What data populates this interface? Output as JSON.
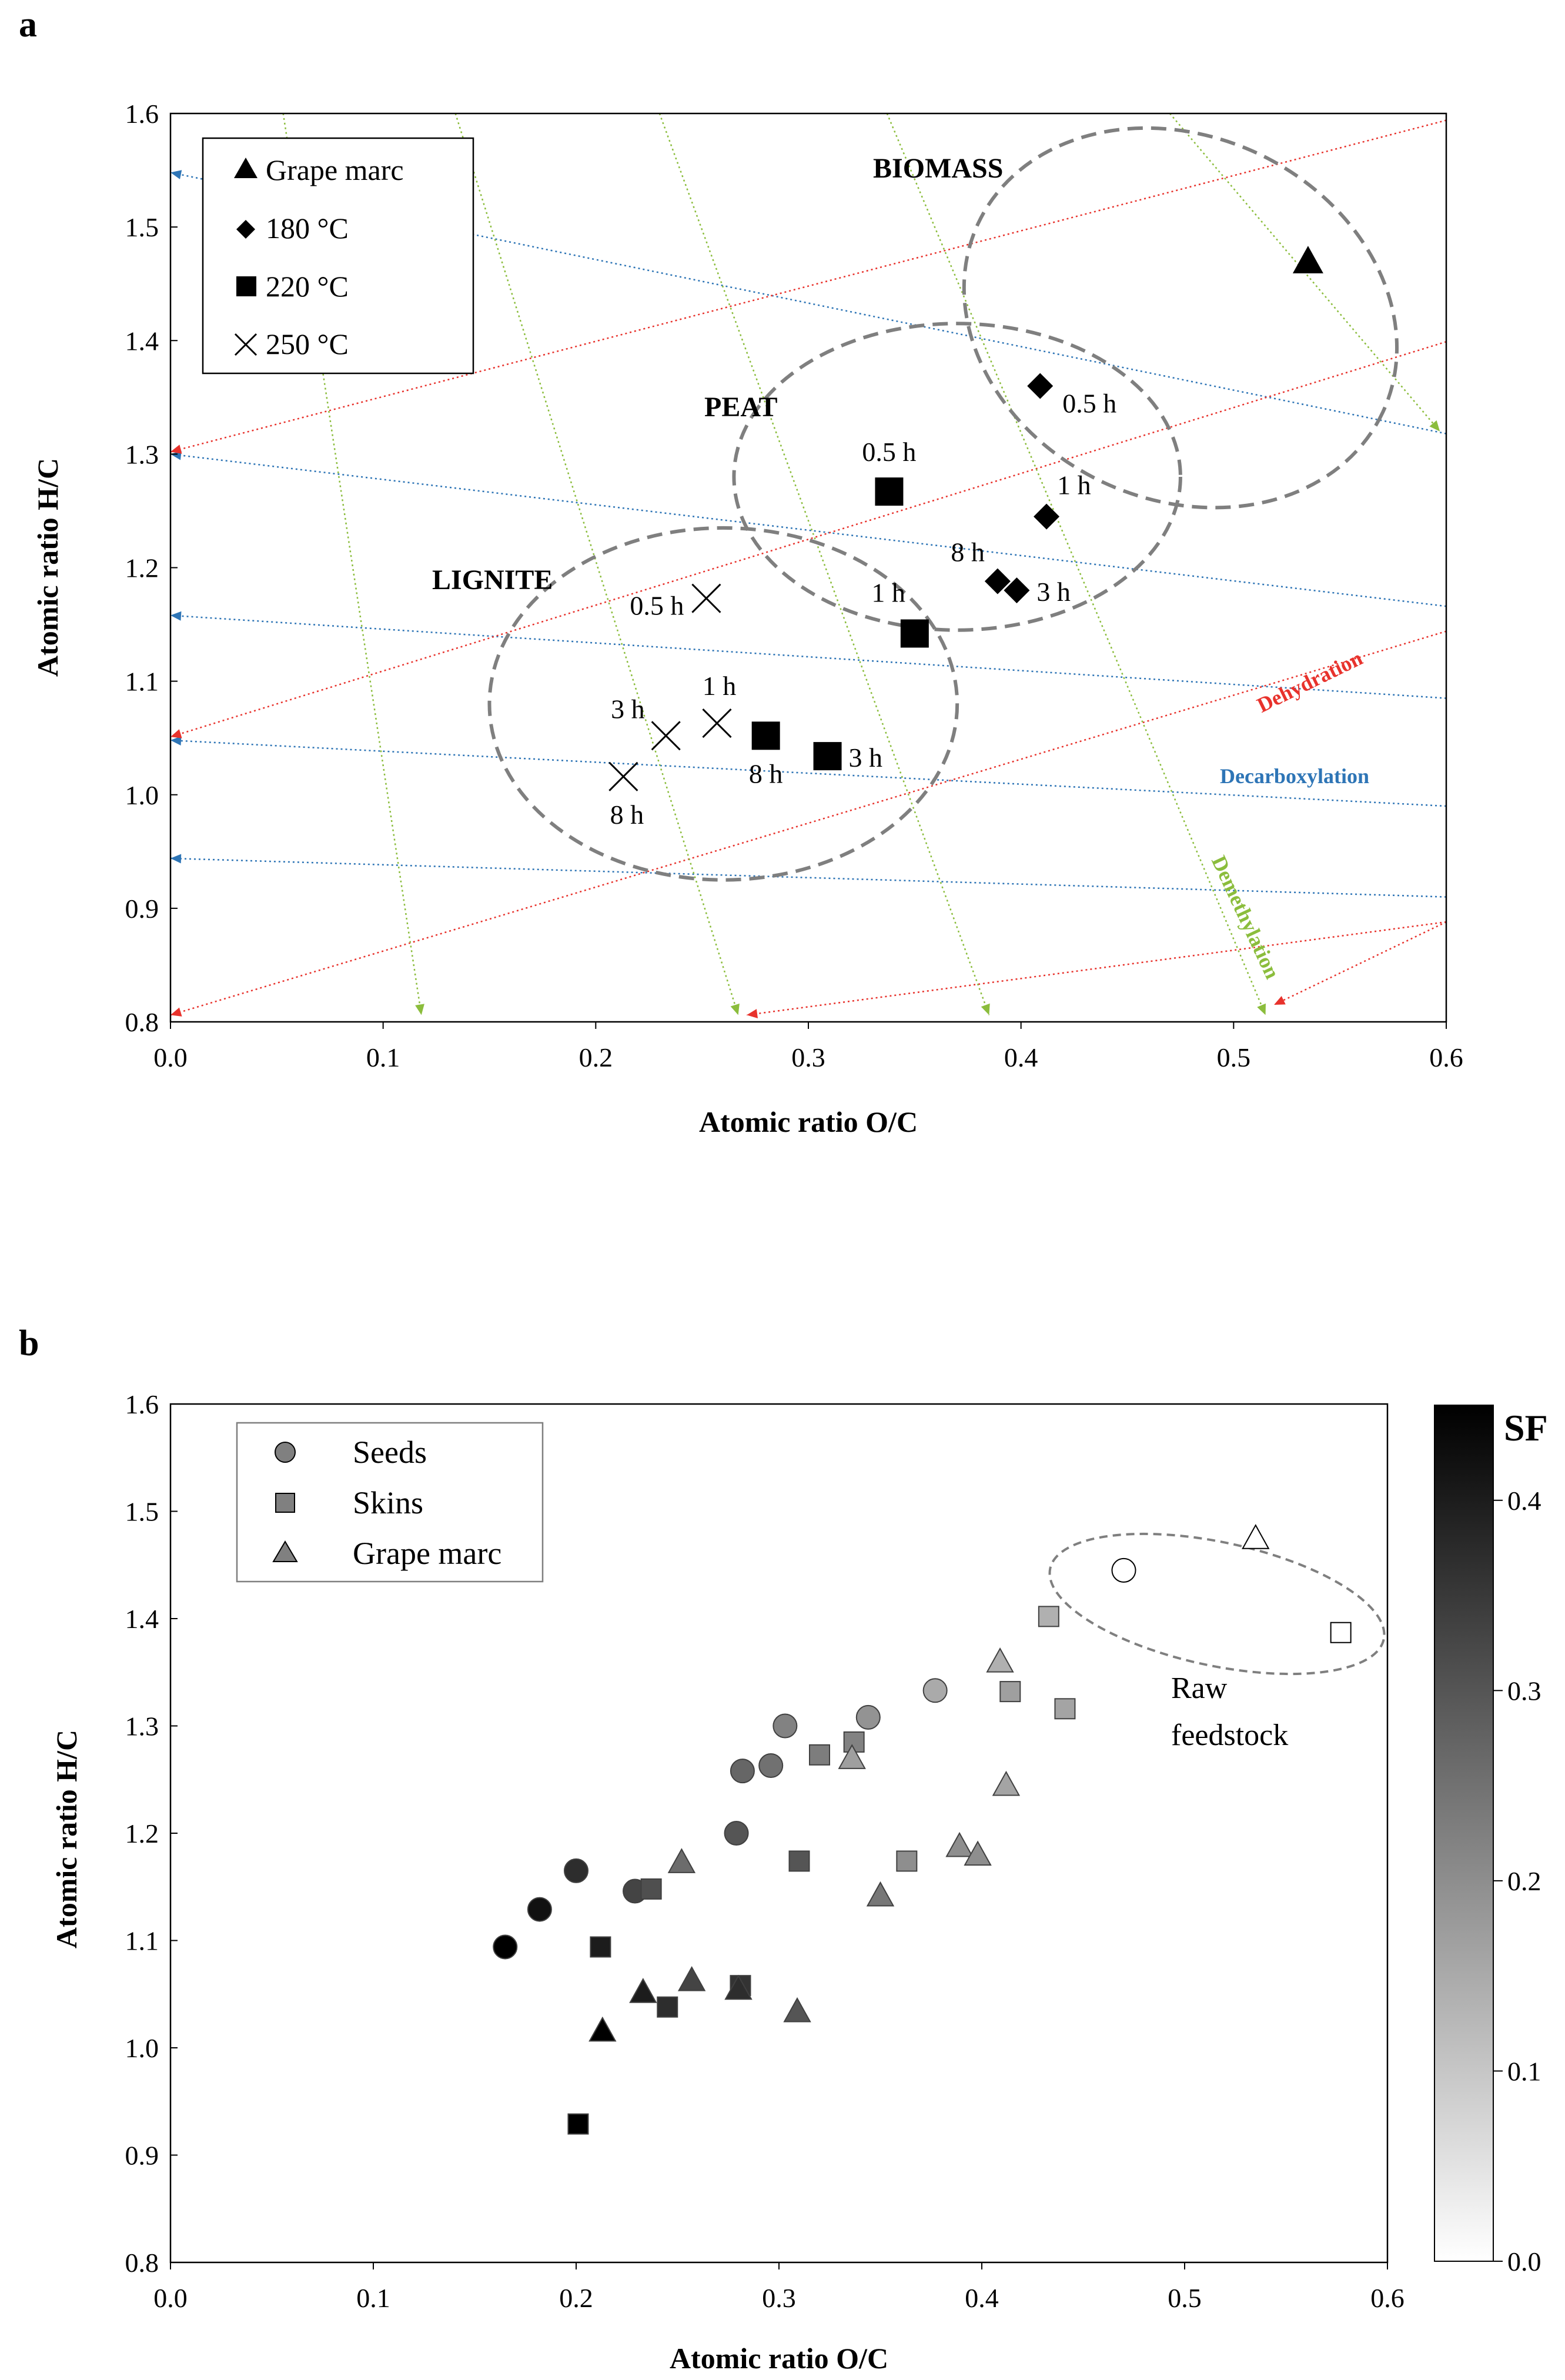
{
  "chart_data": [
    {
      "panel_label": "a",
      "type": "scatter",
      "xlabel": "Atomic ratio O/C",
      "ylabel": "Atomic ratio H/C",
      "xlim": [
        0.0,
        0.6
      ],
      "ylim": [
        0.8,
        1.6
      ],
      "xticks": [
        "0.0",
        "0.1",
        "0.2",
        "0.3",
        "0.4",
        "0.5",
        "0.6"
      ],
      "yticks": [
        "0.8",
        "0.9",
        "1.0",
        "1.1",
        "1.2",
        "1.3",
        "1.4",
        "1.5",
        "1.6"
      ],
      "legend": {
        "position": "top-left",
        "entries": [
          {
            "marker": "triangle",
            "label": "Grape marc"
          },
          {
            "marker": "diamond",
            "label": "180 °C"
          },
          {
            "marker": "square",
            "label": "220 °C"
          },
          {
            "marker": "cross",
            "label": "250 °C"
          }
        ]
      },
      "series": [
        {
          "name": "Grape marc",
          "marker": "triangle",
          "points": [
            {
              "x": 0.535,
              "y": 1.47,
              "label": ""
            }
          ]
        },
        {
          "name": "180 °C",
          "marker": "diamond",
          "points": [
            {
              "x": 0.409,
              "y": 1.36,
              "label": "0.5 h"
            },
            {
              "x": 0.412,
              "y": 1.245,
              "label": "1 h"
            },
            {
              "x": 0.398,
              "y": 1.18,
              "label": "3 h"
            },
            {
              "x": 0.389,
              "y": 1.188,
              "label": "8 h"
            }
          ]
        },
        {
          "name": "220 °C",
          "marker": "square",
          "points": [
            {
              "x": 0.338,
              "y": 1.267,
              "label": "0.5 h"
            },
            {
              "x": 0.35,
              "y": 1.142,
              "label": "1 h"
            },
            {
              "x": 0.309,
              "y": 1.034,
              "label": "3 h"
            },
            {
              "x": 0.28,
              "y": 1.052,
              "label": "8 h"
            }
          ]
        },
        {
          "name": "250 °C",
          "marker": "cross",
          "points": [
            {
              "x": 0.252,
              "y": 1.173,
              "label": "0.5 h"
            },
            {
              "x": 0.257,
              "y": 1.063,
              "label": "1 h"
            },
            {
              "x": 0.233,
              "y": 1.052,
              "label": "3 h"
            },
            {
              "x": 0.213,
              "y": 1.016,
              "label": "8 h"
            }
          ]
        }
      ],
      "regions": [
        {
          "label": "BIOMASS",
          "cx": 0.475,
          "cy": 1.42,
          "rx": 0.105,
          "ry": 0.16,
          "rotate": 25
        },
        {
          "label": "PEAT",
          "cx": 0.37,
          "cy": 1.28,
          "rx": 0.105,
          "ry": 0.135,
          "rotate": 0
        },
        {
          "label": "LIGNITE",
          "cx": 0.26,
          "cy": 1.08,
          "rx": 0.11,
          "ry": 0.155,
          "rotate": 0
        }
      ],
      "reference_lines": {
        "Decarboxylation": {
          "color": "#2e75b6",
          "lines": [
            [
              0.6,
              1.318,
              0.0,
              1.548
            ],
            [
              0.6,
              1.166,
              0.0,
              1.3
            ],
            [
              0.6,
              1.085,
              0.0,
              1.158
            ],
            [
              0.6,
              0.99,
              0.0,
              1.048
            ],
            [
              0.6,
              0.91,
              0.0,
              0.944
            ]
          ]
        },
        "Dehydration": {
          "color": "#e8322c",
          "lines": [
            [
              0.6,
              1.594,
              0.0,
              1.302
            ],
            [
              0.6,
              1.399,
              0.0,
              1.051
            ],
            [
              0.6,
              1.144,
              0.0,
              0.806
            ],
            [
              0.6,
              0.888,
              0.271,
              0.806
            ],
            [
              0.6,
              0.888,
              0.519,
              0.815
            ]
          ]
        },
        "Demethylation": {
          "color": "#8bbd3c",
          "lines": [
            [
              0.053,
              1.6,
              0.118,
              0.806
            ],
            [
              0.134,
              1.6,
              0.267,
              0.806
            ],
            [
              0.23,
              1.6,
              0.385,
              0.806
            ],
            [
              0.337,
              1.6,
              0.515,
              0.806
            ],
            [
              0.47,
              1.6,
              0.597,
              1.32
            ]
          ]
        }
      },
      "annotations": [
        "BIOMASS",
        "PEAT",
        "LIGNITE",
        "Dehydration",
        "Decarboxylation",
        "Demethylation"
      ]
    },
    {
      "panel_label": "b",
      "type": "scatter",
      "xlabel": "Atomic ratio O/C",
      "ylabel": "Atomic ratio H/C",
      "xlim": [
        0.0,
        0.6
      ],
      "ylim": [
        0.8,
        1.6
      ],
      "xticks": [
        "0.0",
        "0.1",
        "0.2",
        "0.3",
        "0.4",
        "0.5",
        "0.6"
      ],
      "yticks": [
        "0.8",
        "0.9",
        "1.0",
        "1.1",
        "1.2",
        "1.3",
        "1.4",
        "1.5",
        "1.6"
      ],
      "legend": {
        "position": "top-left",
        "entries": [
          {
            "marker": "circle",
            "label": "Seeds"
          },
          {
            "marker": "square",
            "label": "Skins"
          },
          {
            "marker": "triangle",
            "label": "Grape marc"
          }
        ]
      },
      "colorbar": {
        "title": "SF",
        "range": [
          0.0,
          0.45
        ],
        "ticks": [
          "0.0",
          "0.1",
          "0.2",
          "0.3",
          "0.4"
        ]
      },
      "series": [
        {
          "name": "Seeds",
          "marker": "circle",
          "points": [
            {
              "x": 0.47,
              "y": 1.445,
              "sf": 0.0
            },
            {
              "x": 0.377,
              "y": 1.333,
              "sf": 0.15
            },
            {
              "x": 0.344,
              "y": 1.308,
              "sf": 0.19
            },
            {
              "x": 0.303,
              "y": 1.3,
              "sf": 0.22
            },
            {
              "x": 0.296,
              "y": 1.263,
              "sf": 0.25
            },
            {
              "x": 0.282,
              "y": 1.258,
              "sf": 0.27
            },
            {
              "x": 0.279,
              "y": 1.2,
              "sf": 0.3
            },
            {
              "x": 0.229,
              "y": 1.146,
              "sf": 0.33
            },
            {
              "x": 0.2,
              "y": 1.165,
              "sf": 0.37
            },
            {
              "x": 0.182,
              "y": 1.129,
              "sf": 0.42
            },
            {
              "x": 0.165,
              "y": 1.094,
              "sf": 0.45
            }
          ]
        },
        {
          "name": "Skins",
          "marker": "square",
          "points": [
            {
              "x": 0.577,
              "y": 1.387,
              "sf": 0.0
            },
            {
              "x": 0.433,
              "y": 1.402,
              "sf": 0.14
            },
            {
              "x": 0.441,
              "y": 1.316,
              "sf": 0.16
            },
            {
              "x": 0.414,
              "y": 1.332,
              "sf": 0.17
            },
            {
              "x": 0.337,
              "y": 1.285,
              "sf": 0.22
            },
            {
              "x": 0.32,
              "y": 1.273,
              "sf": 0.23
            },
            {
              "x": 0.363,
              "y": 1.174,
              "sf": 0.2
            },
            {
              "x": 0.31,
              "y": 1.174,
              "sf": 0.3
            },
            {
              "x": 0.237,
              "y": 1.148,
              "sf": 0.31
            },
            {
              "x": 0.212,
              "y": 1.094,
              "sf": 0.4
            },
            {
              "x": 0.281,
              "y": 1.058,
              "sf": 0.36
            },
            {
              "x": 0.245,
              "y": 1.038,
              "sf": 0.37
            },
            {
              "x": 0.201,
              "y": 0.929,
              "sf": 0.45
            }
          ]
        },
        {
          "name": "Grape marc",
          "marker": "triangle",
          "points": [
            {
              "x": 0.535,
              "y": 1.475,
              "sf": 0.0
            },
            {
              "x": 0.409,
              "y": 1.36,
              "sf": 0.14
            },
            {
              "x": 0.412,
              "y": 1.245,
              "sf": 0.16
            },
            {
              "x": 0.336,
              "y": 1.27,
              "sf": 0.17
            },
            {
              "x": 0.389,
              "y": 1.188,
              "sf": 0.2
            },
            {
              "x": 0.398,
              "y": 1.18,
              "sf": 0.2
            },
            {
              "x": 0.35,
              "y": 1.142,
              "sf": 0.24
            },
            {
              "x": 0.252,
              "y": 1.173,
              "sf": 0.26
            },
            {
              "x": 0.309,
              "y": 1.034,
              "sf": 0.3
            },
            {
              "x": 0.257,
              "y": 1.063,
              "sf": 0.33
            },
            {
              "x": 0.28,
              "y": 1.055,
              "sf": 0.37
            },
            {
              "x": 0.233,
              "y": 1.052,
              "sf": 0.4
            },
            {
              "x": 0.213,
              "y": 1.016,
              "sf": 0.45
            }
          ]
        }
      ],
      "annotation": {
        "lines": [
          "Raw",
          "feedstock"
        ]
      }
    }
  ]
}
